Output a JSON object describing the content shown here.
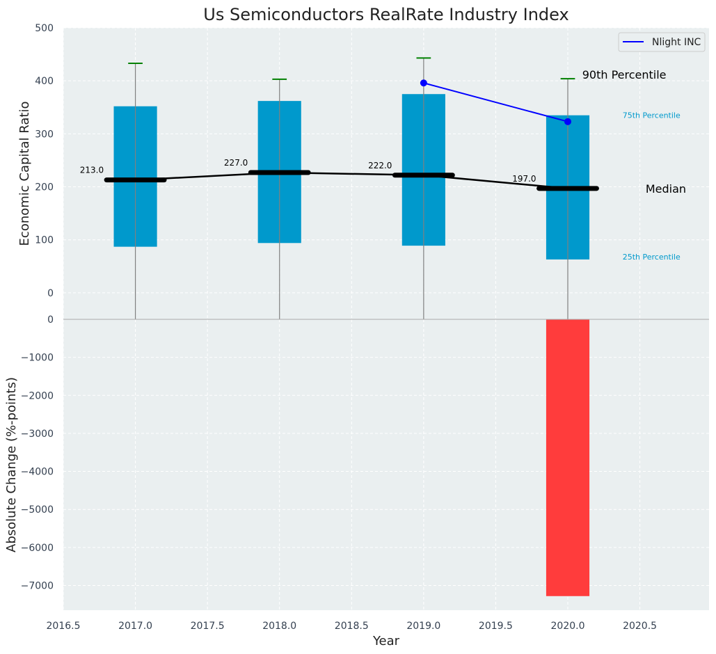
{
  "chart_data": {
    "type": "bar",
    "title": "Us Semiconductors RealRate Industry Index",
    "xlabel": "Year",
    "top_panel": {
      "ylabel": "Economic Capital Ratio",
      "ylim": [
        -50,
        500
      ],
      "yticks": [
        0,
        100,
        200,
        300,
        400,
        500
      ],
      "series": [
        {
          "name": "25th Percentile",
          "x": [
            2017,
            2018,
            2019,
            2020
          ],
          "values": [
            87,
            94,
            89,
            63
          ]
        },
        {
          "name": "75th Percentile",
          "x": [
            2017,
            2018,
            2019,
            2020
          ],
          "values": [
            352,
            362,
            375,
            335
          ]
        },
        {
          "name": "90th Percentile",
          "x": [
            2017,
            2018,
            2019,
            2020
          ],
          "values": [
            433,
            403,
            443,
            404
          ]
        },
        {
          "name": "Median",
          "x": [
            2017,
            2018,
            2019,
            2020
          ],
          "values": [
            213,
            227,
            222,
            197
          ]
        },
        {
          "name": "Nlight INC",
          "x": [
            2019,
            2020
          ],
          "values": [
            396,
            323
          ]
        }
      ],
      "median_labels": [
        "213.0",
        "227.0",
        "222.0",
        "197.0"
      ],
      "annotations": {
        "p90": "90th Percentile",
        "p75": "75th Percentile",
        "median": "Median",
        "p25": "25th Percentile"
      },
      "legend": {
        "label": "Nlight INC",
        "position": "top-right"
      }
    },
    "bottom_panel": {
      "ylabel": "Absolute Change (%-points)",
      "ylim": [
        -7650,
        0
      ],
      "yticks": [
        0,
        -1000,
        -2000,
        -3000,
        -4000,
        -5000,
        -6000,
        -7000
      ],
      "x": [
        2020
      ],
      "values": [
        -7280
      ]
    },
    "xlim": [
      2016.5,
      2020.98
    ],
    "xticks": [
      "2016.5",
      "2017.0",
      "2017.5",
      "2018.0",
      "2018.5",
      "2019.0",
      "2019.5",
      "2020.0",
      "2020.5"
    ],
    "grid": true,
    "colors": {
      "band": "#0099cc",
      "median": "#000000",
      "whisker": "#808080",
      "p90_cap": "#008000",
      "company": "#0000ff",
      "change_bar": "#ff3c3c",
      "p75_text": "#0099cc",
      "p25_text": "#0099cc",
      "axes_bg": "#eaeff0",
      "grid": "#ffffff"
    }
  }
}
